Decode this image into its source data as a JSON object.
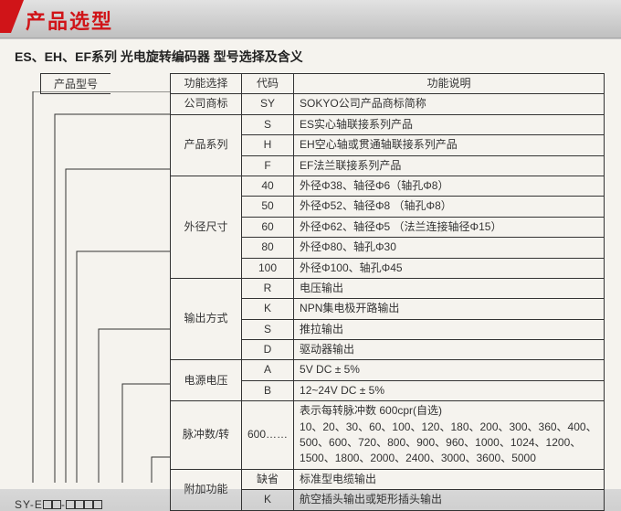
{
  "title": "产品选型",
  "subtitle": "ES、EH、EF系列 光电旋转编码器 型号选择及含义",
  "left_header": "产品型号",
  "model_template_prefix": "SY-E",
  "columns": {
    "func": "功能选择",
    "code": "代码",
    "desc": "功能说明"
  },
  "groups": [
    {
      "name": "公司商标",
      "rows": [
        {
          "code": "SY",
          "desc": "SOKYO公司产品商标简称"
        }
      ]
    },
    {
      "name": "产品系列",
      "rows": [
        {
          "code": "S",
          "desc": "ES实心轴联接系列产品"
        },
        {
          "code": "H",
          "desc": "EH空心轴或贯通轴联接系列产品"
        },
        {
          "code": "F",
          "desc": "EF法兰联接系列产品"
        }
      ]
    },
    {
      "name": "外径尺寸",
      "rows": [
        {
          "code": "40",
          "desc": "外径Φ38、轴径Φ6（轴孔Φ8）"
        },
        {
          "code": "50",
          "desc": "外径Φ52、轴径Φ8 （轴孔Φ8）"
        },
        {
          "code": "60",
          "desc": "外径Φ62、轴径Φ5 （法兰连接轴径Φ15）"
        },
        {
          "code": "80",
          "desc": "外径Φ80、轴孔Φ30"
        },
        {
          "code": "100",
          "desc": "外径Φ100、轴孔Φ45"
        }
      ]
    },
    {
      "name": "输出方式",
      "rows": [
        {
          "code": "R",
          "desc": "电压输出"
        },
        {
          "code": "K",
          "desc": "NPN集电极开路输出"
        },
        {
          "code": "S",
          "desc": "推拉输出"
        },
        {
          "code": "D",
          "desc": "驱动器输出"
        }
      ]
    },
    {
      "name": "电源电压",
      "rows": [
        {
          "code": "A",
          "desc": "5V DC ± 5%"
        },
        {
          "code": "B",
          "desc": "12~24V DC ± 5%"
        }
      ]
    },
    {
      "name": "脉冲数/转",
      "rows": [
        {
          "code": "600……",
          "desc": "表示每转脉冲数 600cpr(自选)\n10、20、30、60、100、120、180、200、300、360、400、500、600、720、800、900、960、1000、1024、1200、1500、1800、2000、2400、3000、3600、5000"
        }
      ]
    },
    {
      "name": "附加功能",
      "rows": [
        {
          "code": "缺省",
          "desc": "标准型电缆输出"
        },
        {
          "code": "K",
          "desc": "航空插头输出或矩形插头输出"
        }
      ]
    }
  ],
  "colors": {
    "accent": "#d01418",
    "border": "#333333",
    "bg": "#f5f3ee"
  }
}
